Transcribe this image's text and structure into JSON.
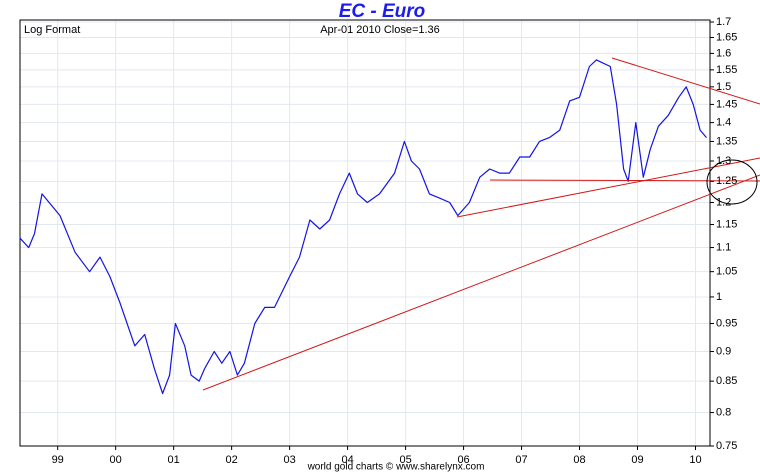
{
  "chart_data": {
    "type": "line",
    "title": "EC  -  Euro",
    "annotations": [
      "Log Format",
      "Apr-01  2010   Close=1.36"
    ],
    "footer": "world gold charts © www.sharelynx.com",
    "log_scale": true,
    "grid": true,
    "color": "#1414e6",
    "x": [
      1998.35,
      1998.5,
      1998.6,
      1998.73,
      1999.04,
      1999.3,
      1999.55,
      1999.73,
      1999.9,
      2000.07,
      2000.33,
      2000.5,
      2000.67,
      2000.81,
      2000.93,
      2001.03,
      2001.19,
      2001.3,
      2001.44,
      2001.53,
      2001.7,
      2001.83,
      2001.97,
      2002.1,
      2002.22,
      2002.4,
      2002.57,
      2002.74,
      2003.0,
      2003.17,
      2003.35,
      2003.52,
      2003.69,
      2003.86,
      2004.03,
      2004.17,
      2004.34,
      2004.55,
      2004.81,
      2004.98,
      2005.1,
      2005.24,
      2005.41,
      2005.59,
      2005.76,
      2005.9,
      2006.1,
      2006.28,
      2006.45,
      2006.62,
      2006.79,
      2006.97,
      2007.14,
      2007.31,
      2007.48,
      2007.66,
      2007.83,
      2008.0,
      2008.17,
      2008.29,
      2008.41,
      2008.53,
      2008.64,
      2008.76,
      2008.84,
      2008.97,
      2009.1,
      2009.22,
      2009.36,
      2009.53,
      2009.71,
      2009.84,
      2009.96,
      2010.08,
      2010.19
    ],
    "values": [
      1.12,
      1.1,
      1.13,
      1.22,
      1.17,
      1.09,
      1.05,
      1.08,
      1.04,
      0.99,
      0.91,
      0.93,
      0.87,
      0.83,
      0.86,
      0.95,
      0.91,
      0.86,
      0.85,
      0.87,
      0.9,
      0.88,
      0.9,
      0.86,
      0.88,
      0.95,
      0.98,
      0.98,
      1.04,
      1.08,
      1.16,
      1.14,
      1.16,
      1.22,
      1.27,
      1.22,
      1.2,
      1.22,
      1.27,
      1.35,
      1.3,
      1.28,
      1.22,
      1.21,
      1.2,
      1.17,
      1.2,
      1.26,
      1.28,
      1.27,
      1.27,
      1.31,
      1.31,
      1.35,
      1.36,
      1.38,
      1.46,
      1.47,
      1.56,
      1.58,
      1.57,
      1.56,
      1.45,
      1.28,
      1.25,
      1.4,
      1.26,
      1.33,
      1.39,
      1.42,
      1.47,
      1.5,
      1.45,
      1.38,
      1.36
    ],
    "xlim": [
      1998.35,
      2010.25
    ],
    "xticks": [
      {
        "value": 1999,
        "label": "99"
      },
      {
        "value": 2000,
        "label": "00"
      },
      {
        "value": 2001,
        "label": "01"
      },
      {
        "value": 2002,
        "label": "02"
      },
      {
        "value": 2003,
        "label": "03"
      },
      {
        "value": 2004,
        "label": "04"
      },
      {
        "value": 2005,
        "label": "05"
      },
      {
        "value": 2006,
        "label": "06"
      },
      {
        "value": 2007,
        "label": "07"
      },
      {
        "value": 2008,
        "label": "08"
      },
      {
        "value": 2009,
        "label": "09"
      },
      {
        "value": 2010,
        "label": "10"
      }
    ],
    "ylim": [
      0.75,
      1.7
    ],
    "yticks": [
      0.75,
      0.8,
      0.85,
      0.9,
      0.95,
      1,
      1.05,
      1.1,
      1.15,
      1.2,
      1.25,
      1.3,
      1.35,
      1.4,
      1.45,
      1.5,
      1.55,
      1.6,
      1.65,
      1.7
    ]
  }
}
